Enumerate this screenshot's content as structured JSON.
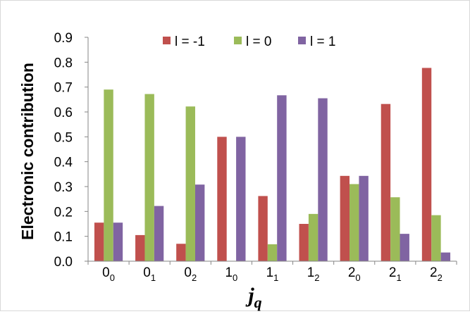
{
  "chart_data": {
    "type": "bar",
    "categories": [
      {
        "base": "0",
        "sub": "0"
      },
      {
        "base": "0",
        "sub": "1"
      },
      {
        "base": "0",
        "sub": "2"
      },
      {
        "base": "1",
        "sub": "0"
      },
      {
        "base": "1",
        "sub": "1"
      },
      {
        "base": "1",
        "sub": "2"
      },
      {
        "base": "2",
        "sub": "0"
      },
      {
        "base": "2",
        "sub": "1"
      },
      {
        "base": "2",
        "sub": "2"
      }
    ],
    "series": [
      {
        "name": "l = -1",
        "color": "#c0504d",
        "values": [
          0.155,
          0.105,
          0.07,
          0.5,
          0.262,
          0.15,
          0.343,
          0.632,
          0.777
        ]
      },
      {
        "name": "l = 0",
        "color": "#9bbb59",
        "values": [
          0.69,
          0.672,
          0.622,
          0.0,
          0.068,
          0.19,
          0.31,
          0.257,
          0.185
        ]
      },
      {
        "name": "l = 1",
        "color": "#8064a2",
        "values": [
          0.155,
          0.222,
          0.308,
          0.5,
          0.667,
          0.655,
          0.343,
          0.11,
          0.035
        ]
      }
    ],
    "yticks": [
      "0.0",
      "0.1",
      "0.2",
      "0.3",
      "0.4",
      "0.5",
      "0.6",
      "0.7",
      "0.8",
      "0.9"
    ],
    "ylim": [
      0,
      0.9
    ],
    "ylabel": "Electronic  contribution",
    "xlabel": {
      "base": "j",
      "sub": "q"
    },
    "legend_position": "top-center",
    "grid": false
  }
}
